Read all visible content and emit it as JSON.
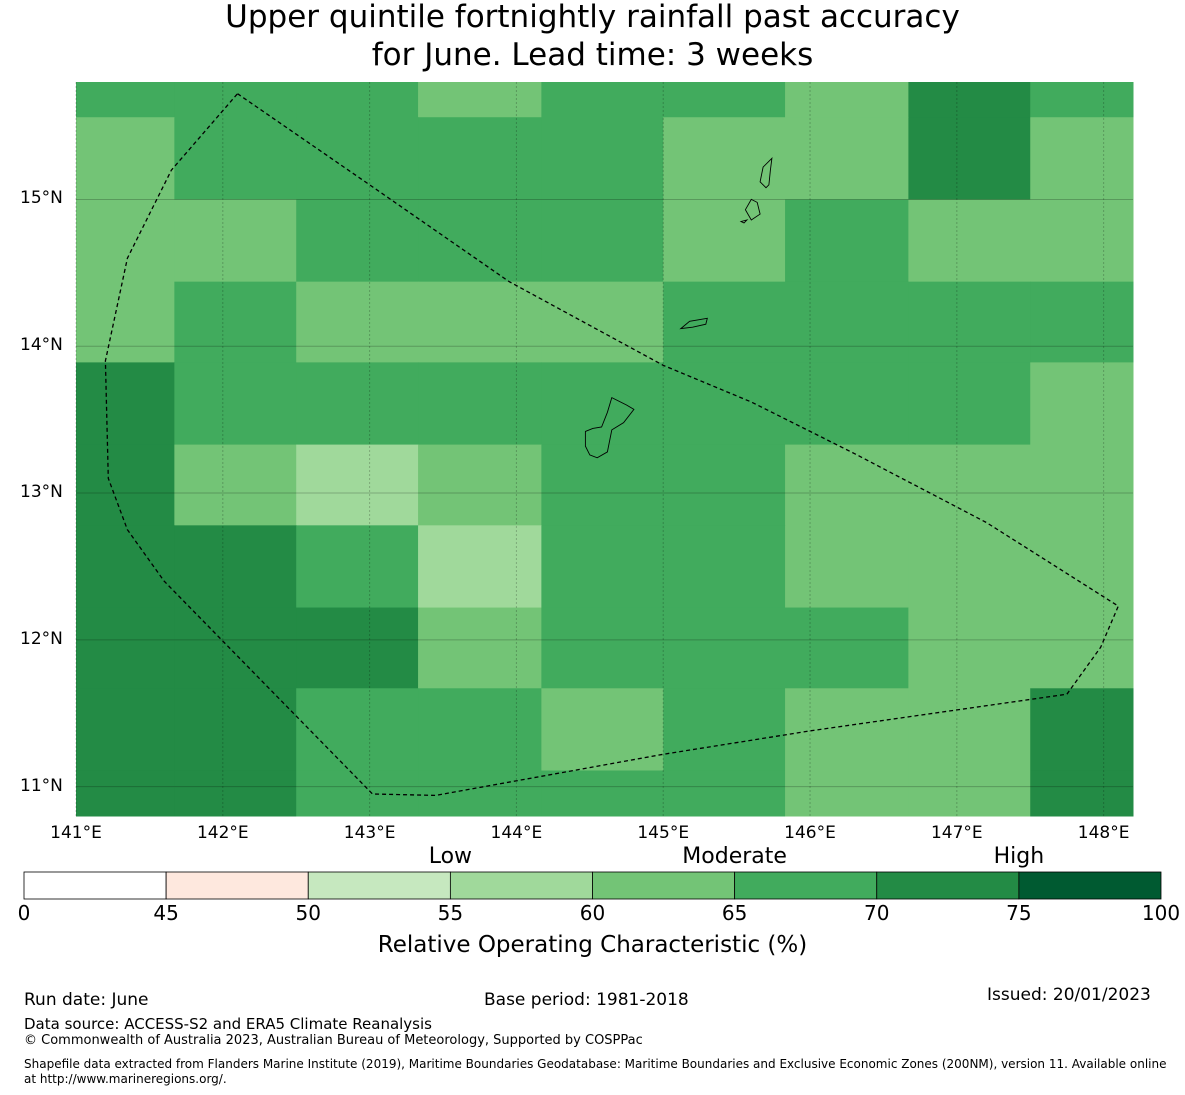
{
  "title": {
    "line1": "Upper quintile fortnightly rainfall past accuracy",
    "line2": "for June. Lead time: 3 weeks"
  },
  "map": {
    "lon_range": [
      141.0,
      148.2
    ],
    "lat_range": [
      10.8,
      15.8
    ],
    "lat_ticks": [
      {
        "value": 15,
        "label": "15°N"
      },
      {
        "value": 14,
        "label": "14°N"
      },
      {
        "value": 13,
        "label": "13°N"
      },
      {
        "value": 12,
        "label": "12°N"
      },
      {
        "value": 11,
        "label": "11°N"
      }
    ],
    "lon_ticks": [
      {
        "value": 141,
        "label": "141°E"
      },
      {
        "value": 142,
        "label": "142°E"
      },
      {
        "value": 143,
        "label": "143°E"
      },
      {
        "value": 144,
        "label": "144°E"
      },
      {
        "value": 145,
        "label": "145°E"
      },
      {
        "value": 146,
        "label": "146°E"
      },
      {
        "value": 147,
        "label": "147°E"
      },
      {
        "value": 148,
        "label": "148°E"
      }
    ],
    "grid_cols": [
      141.0,
      141.67,
      142.5,
      143.33,
      144.17,
      145.0,
      145.83,
      146.67,
      147.5,
      148.2
    ],
    "grid_rows": [
      15.8,
      15.56,
      15.0,
      14.44,
      13.89,
      13.33,
      12.78,
      12.22,
      11.67,
      11.11,
      10.8
    ],
    "cell_classes": [
      [
        5,
        5,
        5,
        4,
        5,
        5,
        4,
        6,
        5
      ],
      [
        4,
        5,
        5,
        5,
        5,
        4,
        4,
        6,
        4
      ],
      [
        4,
        4,
        5,
        5,
        5,
        4,
        5,
        4,
        4
      ],
      [
        4,
        5,
        4,
        4,
        4,
        5,
        5,
        5,
        5
      ],
      [
        6,
        5,
        5,
        5,
        5,
        5,
        5,
        5,
        4
      ],
      [
        6,
        4,
        3,
        4,
        5,
        5,
        4,
        4,
        4
      ],
      [
        6,
        6,
        5,
        3,
        5,
        5,
        4,
        4,
        4
      ],
      [
        6,
        6,
        6,
        4,
        5,
        5,
        5,
        4,
        4
      ],
      [
        6,
        6,
        5,
        5,
        4,
        5,
        4,
        4,
        6
      ],
      [
        6,
        6,
        5,
        5,
        5,
        5,
        4,
        4,
        6
      ]
    ],
    "eez_boundary": [
      [
        142.1,
        15.72
      ],
      [
        143.0,
        15.1
      ],
      [
        143.95,
        14.44
      ],
      [
        145.0,
        13.87
      ],
      [
        145.6,
        13.62
      ],
      [
        146.3,
        13.27
      ],
      [
        147.2,
        12.8
      ],
      [
        148.1,
        12.23
      ],
      [
        147.98,
        11.95
      ],
      [
        147.75,
        11.63
      ],
      [
        146.0,
        11.38
      ],
      [
        145.0,
        11.22
      ],
      [
        143.45,
        10.94
      ],
      [
        143.02,
        10.95
      ],
      [
        141.6,
        12.4
      ],
      [
        141.35,
        12.75
      ],
      [
        141.22,
        13.1
      ],
      [
        141.2,
        13.9
      ],
      [
        141.35,
        14.6
      ],
      [
        141.65,
        15.2
      ],
      [
        142.1,
        15.72
      ]
    ],
    "islands": [
      {
        "name": "guam",
        "coords": [
          [
            144.65,
            13.65
          ],
          [
            144.75,
            13.6
          ],
          [
            144.8,
            13.57
          ],
          [
            144.73,
            13.48
          ],
          [
            144.65,
            13.43
          ],
          [
            144.62,
            13.28
          ],
          [
            144.55,
            13.24
          ],
          [
            144.5,
            13.26
          ],
          [
            144.47,
            13.32
          ],
          [
            144.47,
            13.42
          ],
          [
            144.52,
            13.44
          ],
          [
            144.58,
            13.45
          ],
          [
            144.62,
            13.55
          ],
          [
            144.65,
            13.65
          ]
        ]
      },
      {
        "name": "rota",
        "coords": [
          [
            145.12,
            14.12
          ],
          [
            145.18,
            14.17
          ],
          [
            145.3,
            14.19
          ],
          [
            145.29,
            14.15
          ],
          [
            145.2,
            14.13
          ],
          [
            145.12,
            14.12
          ]
        ]
      },
      {
        "name": "saipan",
        "coords": [
          [
            145.74,
            15.28
          ],
          [
            145.68,
            15.22
          ],
          [
            145.66,
            15.12
          ],
          [
            145.7,
            15.08
          ],
          [
            145.72,
            15.1
          ],
          [
            145.73,
            15.2
          ],
          [
            145.74,
            15.28
          ]
        ]
      },
      {
        "name": "tinian",
        "coords": [
          [
            145.6,
            15.0
          ],
          [
            145.64,
            14.98
          ],
          [
            145.66,
            14.9
          ],
          [
            145.6,
            14.86
          ],
          [
            145.56,
            14.93
          ],
          [
            145.6,
            15.0
          ]
        ]
      },
      {
        "name": "aguijan",
        "coords": [
          [
            145.53,
            14.85
          ],
          [
            145.57,
            14.86
          ],
          [
            145.55,
            14.84
          ],
          [
            145.53,
            14.85
          ]
        ]
      }
    ]
  },
  "legend": {
    "categories": [
      {
        "label": "Low",
        "value": 55
      },
      {
        "label": "Moderate",
        "value": 65
      },
      {
        "label": "High",
        "value": 75
      }
    ],
    "ticks": [
      0,
      45,
      50,
      55,
      60,
      65,
      70,
      75,
      100
    ],
    "colors": [
      "#ffffff",
      "#fee8de",
      "#c6e8bf",
      "#a0d99b",
      "#73c476",
      "#41ab5d",
      "#238b45",
      "#005a31"
    ],
    "title": "Relative Operating Characteristic (%)"
  },
  "footer": {
    "run_date": "Run date: June",
    "base_period": "Base period: 1981-2018",
    "issued": "Issued: 20/01/2023",
    "data_source": "Data source: ACCESS-S2 and ERA5 Climate Reanalysis",
    "copyright": "© Commonwealth of Australia 2023, Australian Bureau of Meteorology, Supported by COSPPac",
    "shapefile": "Shapefile data extracted from Flanders Marine Institute (2019), Maritime Boundaries Geodatabase: Maritime Boundaries and Exclusive Economic Zones (200NM), version 11. Available online at http://www.marineregions.org/."
  }
}
